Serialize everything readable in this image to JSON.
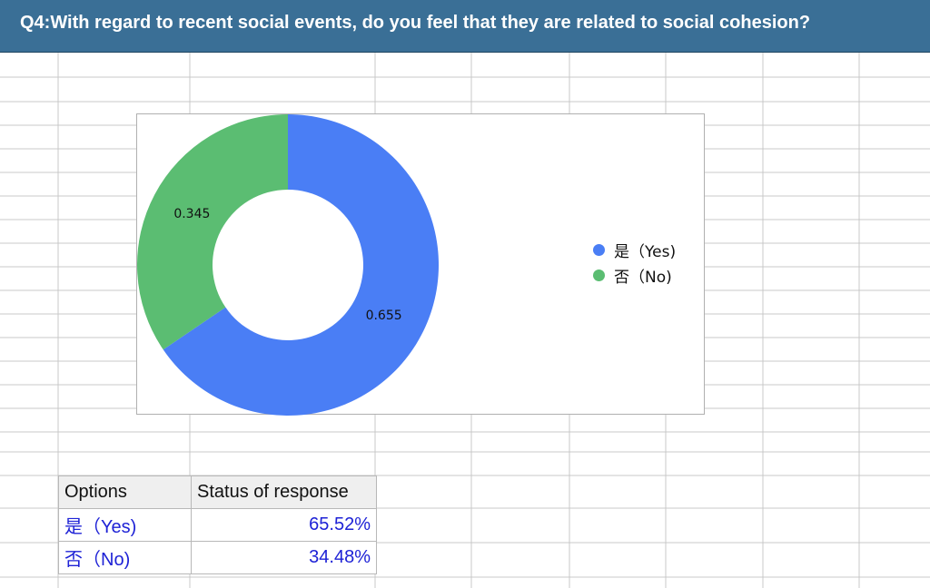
{
  "header": {
    "title": "Q4:With regard to recent social events, do you feel that they are related to social cohesion?"
  },
  "chart_data": {
    "type": "pie",
    "donut": true,
    "categories": [
      "是（Yes)",
      "否（No)"
    ],
    "values": [
      0.655,
      0.345
    ],
    "data_labels": [
      "0.655",
      "0.345"
    ],
    "colors": [
      "#4a7ef5",
      "#5bbd72"
    ],
    "legend_position": "right",
    "title": ""
  },
  "table": {
    "headers": [
      "Options",
      "Status of response"
    ],
    "rows": [
      {
        "option": "是（Yes)",
        "value": "65.52%"
      },
      {
        "option": "否（No)",
        "value": "34.48%"
      }
    ]
  }
}
